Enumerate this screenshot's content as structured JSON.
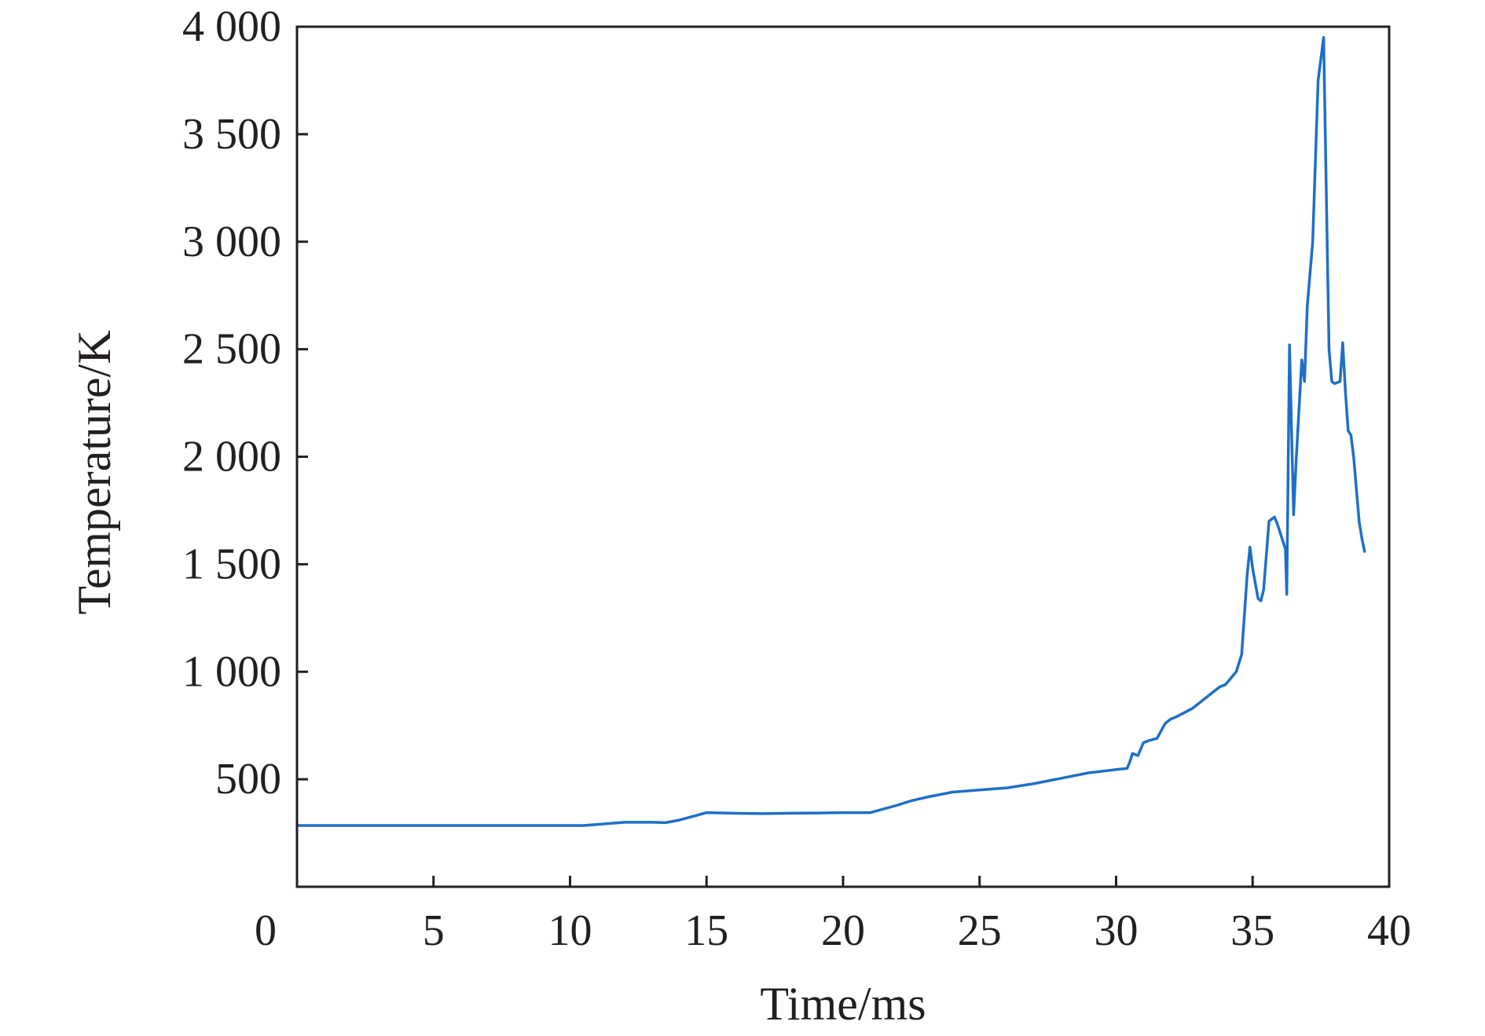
{
  "chart_data": {
    "type": "line",
    "title": "",
    "xlabel": "Time/ms",
    "ylabel": "Temperature/K",
    "xlim": [
      0,
      40
    ],
    "ylim": [
      0,
      4000
    ],
    "xticks": [
      0,
      5,
      10,
      15,
      20,
      25,
      30,
      35,
      40
    ],
    "xtick_labels": [
      "0",
      "5",
      "10",
      "15",
      "20",
      "25",
      "30",
      "35",
      "40"
    ],
    "yticks": [
      500,
      1000,
      1500,
      2000,
      2500,
      3000,
      3500,
      4000
    ],
    "ytick_labels": [
      "500",
      "1 000",
      "1 500",
      "2 000",
      "2 500",
      "3 000",
      "3 500",
      "4 000"
    ],
    "grid": false,
    "legend": "none",
    "line_color": "#1f6fc6",
    "series": [
      {
        "x": [
          0,
          2,
          4,
          6,
          8,
          10,
          10.5,
          11,
          12,
          13,
          13.5,
          14,
          15,
          16,
          17,
          18,
          19,
          20,
          21,
          22,
          22.5,
          23,
          24,
          25,
          26,
          27,
          28,
          29,
          30,
          30.4,
          30.5,
          30.6,
          30.8,
          31,
          31.2,
          31.5,
          31.8,
          32,
          32.2,
          32.5,
          32.8,
          33,
          33.2,
          33.5,
          33.8,
          34,
          34.2,
          34.4,
          34.6,
          34.8,
          34.9,
          35,
          35.2,
          35.3,
          35.4,
          35.6,
          35.8,
          35.9,
          36,
          36.2,
          36.25,
          36.35,
          36.5,
          36.6,
          36.8,
          36.9,
          37,
          37.2,
          37.4,
          37.6,
          37.8,
          37.9,
          38,
          38.2,
          38.3,
          38.4,
          38.5,
          38.6,
          38.7,
          38.8,
          38.9,
          39,
          39.1
        ],
        "values": [
          285,
          285,
          285,
          285,
          285,
          285,
          285,
          290,
          300,
          300,
          298,
          310,
          345,
          342,
          340,
          342,
          343,
          345,
          345,
          380,
          400,
          415,
          440,
          450,
          460,
          480,
          505,
          530,
          545,
          550,
          580,
          620,
          610,
          670,
          680,
          690,
          760,
          780,
          790,
          810,
          830,
          850,
          870,
          900,
          930,
          940,
          970,
          1000,
          1080,
          1450,
          1580,
          1480,
          1340,
          1330,
          1380,
          1700,
          1720,
          1690,
          1650,
          1570,
          1360,
          2520,
          1730,
          2000,
          2450,
          2350,
          2700,
          3000,
          3750,
          3950,
          2500,
          2350,
          2340,
          2350,
          2530,
          2300,
          2120,
          2100,
          2000,
          1850,
          1700,
          1620,
          1560
        ]
      }
    ]
  }
}
